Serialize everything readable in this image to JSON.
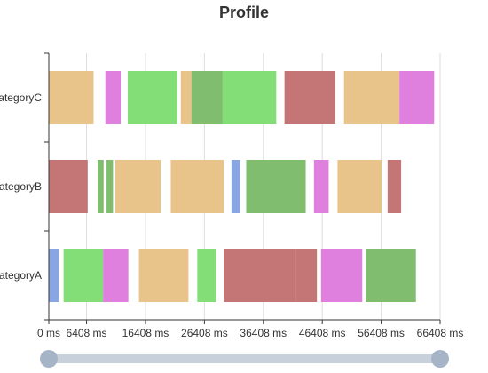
{
  "chart_data": {
    "type": "bar",
    "subtype": "timeline-profile",
    "title": "Profile",
    "xlabel": "",
    "ylabel": "",
    "x_unit": "ms",
    "xlim": [
      0,
      66408
    ],
    "x_ticks": [
      {
        "value": 0,
        "label": "0 ms"
      },
      {
        "value": 6408,
        "label": "6408 ms"
      },
      {
        "value": 16408,
        "label": "16408 ms"
      },
      {
        "value": 26408,
        "label": "26408 ms"
      },
      {
        "value": 36408,
        "label": "36408 ms"
      },
      {
        "value": 46408,
        "label": "46408 ms"
      },
      {
        "value": 56408,
        "label": "56408 ms"
      },
      {
        "value": 66408,
        "label": "66408 ms"
      }
    ],
    "grid": {
      "vertical": true,
      "horizontal": false
    },
    "legend": "none",
    "categories": [
      "categoryA",
      "categoryB",
      "categoryC"
    ],
    "category_labels_visible": [
      "ategoryA",
      "ategoryB",
      "ategoryC"
    ],
    "type_colors": {
      "orange": "#e8c38a",
      "pink": "#df80df",
      "green": "#84de78",
      "darkgreen": "#80bd6e",
      "red": "#c47676",
      "blue": "#8aa6e2"
    },
    "events": [
      {
        "category": "categoryC",
        "start": 0,
        "end": 7600,
        "color_key": "orange"
      },
      {
        "category": "categoryC",
        "start": 9600,
        "end": 12200,
        "color_key": "pink"
      },
      {
        "category": "categoryC",
        "start": 13400,
        "end": 21800,
        "color_key": "green"
      },
      {
        "category": "categoryC",
        "start": 22400,
        "end": 24200,
        "color_key": "orange"
      },
      {
        "category": "categoryC",
        "start": 24200,
        "end": 29500,
        "color_key": "darkgreen"
      },
      {
        "category": "categoryC",
        "start": 29500,
        "end": 38600,
        "color_key": "green"
      },
      {
        "category": "categoryC",
        "start": 40000,
        "end": 48600,
        "color_key": "red"
      },
      {
        "category": "categoryC",
        "start": 50100,
        "end": 59500,
        "color_key": "orange"
      },
      {
        "category": "categoryC",
        "start": 59500,
        "end": 65400,
        "color_key": "pink"
      },
      {
        "category": "categoryB",
        "start": 0,
        "end": 6600,
        "color_key": "red"
      },
      {
        "category": "categoryB",
        "start": 8300,
        "end": 9300,
        "color_key": "darkgreen"
      },
      {
        "category": "categoryB",
        "start": 9800,
        "end": 10900,
        "color_key": "darkgreen"
      },
      {
        "category": "categoryB",
        "start": 11300,
        "end": 19000,
        "color_key": "orange"
      },
      {
        "category": "categoryB",
        "start": 20700,
        "end": 29700,
        "color_key": "orange"
      },
      {
        "category": "categoryB",
        "start": 31000,
        "end": 32500,
        "color_key": "blue"
      },
      {
        "category": "categoryB",
        "start": 33500,
        "end": 43600,
        "color_key": "darkgreen"
      },
      {
        "category": "categoryB",
        "start": 45000,
        "end": 47500,
        "color_key": "pink"
      },
      {
        "category": "categoryB",
        "start": 49000,
        "end": 56500,
        "color_key": "orange"
      },
      {
        "category": "categoryB",
        "start": 57500,
        "end": 59800,
        "color_key": "red"
      },
      {
        "category": "categoryA",
        "start": 0,
        "end": 1700,
        "color_key": "blue"
      },
      {
        "category": "categoryA",
        "start": 2500,
        "end": 9200,
        "color_key": "green"
      },
      {
        "category": "categoryA",
        "start": 9200,
        "end": 13500,
        "color_key": "pink"
      },
      {
        "category": "categoryA",
        "start": 15300,
        "end": 23700,
        "color_key": "orange"
      },
      {
        "category": "categoryA",
        "start": 25200,
        "end": 28400,
        "color_key": "green"
      },
      {
        "category": "categoryA",
        "start": 29700,
        "end": 32000,
        "color_key": "red"
      },
      {
        "category": "categoryA",
        "start": 32000,
        "end": 42000,
        "color_key": "red"
      },
      {
        "category": "categoryA",
        "start": 42000,
        "end": 45500,
        "color_key": "red"
      },
      {
        "category": "categoryA",
        "start": 46200,
        "end": 53200,
        "color_key": "pink"
      },
      {
        "category": "categoryA",
        "start": 53800,
        "end": 62300,
        "color_key": "darkgreen"
      }
    ],
    "slider": {
      "range_start_fraction": 0.0,
      "range_end_fraction": 1.0,
      "track_color": "#c7d0db",
      "handle_color": "#a5b4c6"
    }
  }
}
